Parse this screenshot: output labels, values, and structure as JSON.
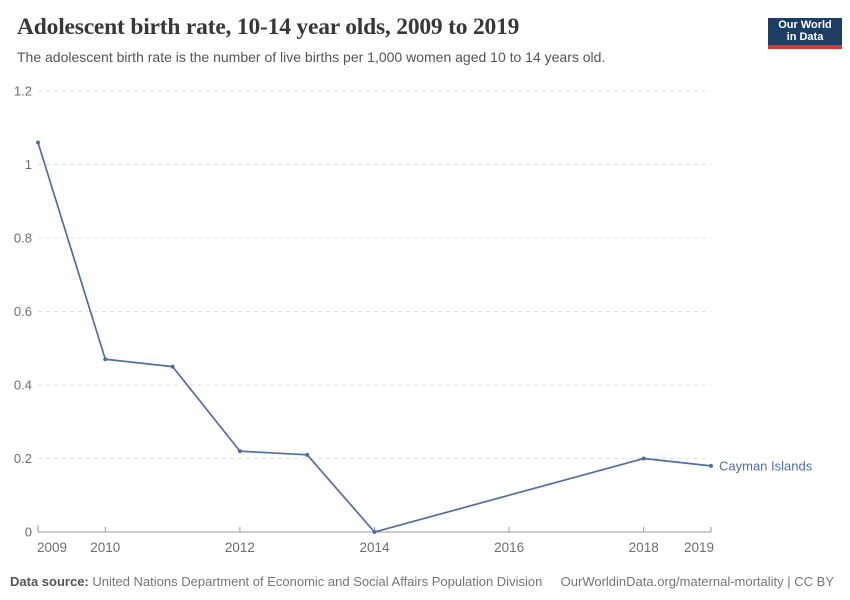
{
  "header": {
    "title": "Adolescent birth rate, 10-14 year olds, 2009 to 2019",
    "subtitle": "The adolescent birth rate is the number of live births per 1,000 women aged 10 to 14 years old.",
    "logo": {
      "line1": "Our World",
      "line2": "in Data",
      "bg": "#1d3d63",
      "accent": "#d73a33"
    }
  },
  "chart_data": {
    "type": "line",
    "title": "Adolescent birth rate, 10-14 year olds, 2009 to 2019",
    "xlabel": "",
    "ylabel": "",
    "xlim": [
      2009,
      2019
    ],
    "ylim": [
      0,
      1.2
    ],
    "x_ticks": [
      2009,
      2010,
      2012,
      2014,
      2016,
      2018,
      2019
    ],
    "y_ticks": [
      0,
      0.2,
      0.4,
      0.6,
      0.8,
      1,
      1.2
    ],
    "grid": "horizontal-dashed",
    "legend": "end-of-line-label",
    "colors": {
      "grid": "#e0e0e0",
      "axis": "#999999",
      "tick_text": "#6e6e6e"
    },
    "series": [
      {
        "name": "Cayman Islands",
        "color": "#4c6ea9",
        "points": [
          [
            2009,
            1.06
          ],
          [
            2010,
            0.47
          ],
          [
            2011,
            0.45
          ],
          [
            2012,
            0.22
          ],
          [
            2013,
            0.21
          ],
          [
            2014,
            0
          ],
          [
            2018,
            0.2
          ],
          [
            2019,
            0.18
          ]
        ]
      }
    ]
  },
  "footer": {
    "source_label": "Data source:",
    "source_text": " United Nations Department of Economic and Social Affairs Population Division",
    "credit": "OurWorldinData.org/maternal-mortality | CC BY"
  }
}
